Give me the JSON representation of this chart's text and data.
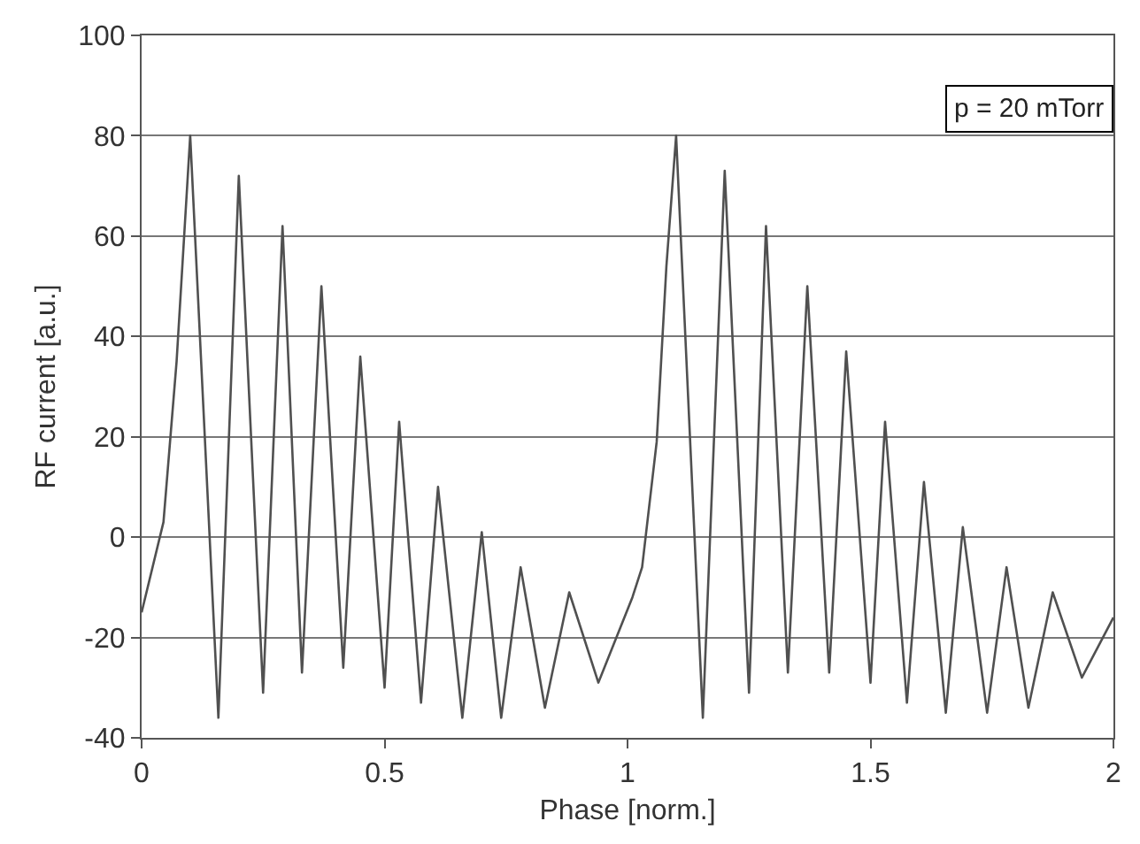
{
  "chart_data": {
    "type": "line",
    "xlabel": "Phase [norm.]",
    "ylabel": "RF current [a.u.]",
    "annotations": [
      "p = 20 mTorr"
    ],
    "x": [
      0,
      0.045,
      0.072,
      0.1,
      0.158,
      0.2,
      0.25,
      0.29,
      0.33,
      0.37,
      0.415,
      0.45,
      0.5,
      0.53,
      0.575,
      0.61,
      0.66,
      0.7,
      0.74,
      0.78,
      0.83,
      0.88,
      0.94,
      1.01,
      1.03,
      1.06,
      1.08,
      1.1,
      1.155,
      1.2,
      1.25,
      1.285,
      1.33,
      1.37,
      1.415,
      1.45,
      1.5,
      1.53,
      1.575,
      1.61,
      1.655,
      1.69,
      1.74,
      1.78,
      1.825,
      1.875,
      1.935,
      2
    ],
    "series": [
      {
        "color": "#505050",
        "values": [
          -15,
          3,
          35,
          80,
          -36,
          72,
          -31,
          62,
          -27,
          50,
          -26,
          36,
          -30,
          23,
          -33,
          10,
          -36,
          1,
          -36,
          -6,
          -34,
          -11,
          -29,
          -12,
          -6,
          19,
          54,
          80,
          -36,
          73,
          -31,
          62,
          -27,
          50,
          -27,
          37,
          -29,
          23,
          -33,
          11,
          -35,
          2,
          -35,
          -6,
          -34,
          -11,
          -28,
          -16
        ]
      }
    ],
    "xlim": [
      0,
      2
    ],
    "xticks": [
      0,
      0.5,
      1,
      1.5,
      2
    ],
    "ylim": [
      -40,
      100
    ],
    "yticks": [
      -40,
      -20,
      0,
      20,
      40,
      60,
      80,
      100
    ],
    "grid": "y",
    "marker": "none",
    "line_style": "solid"
  }
}
